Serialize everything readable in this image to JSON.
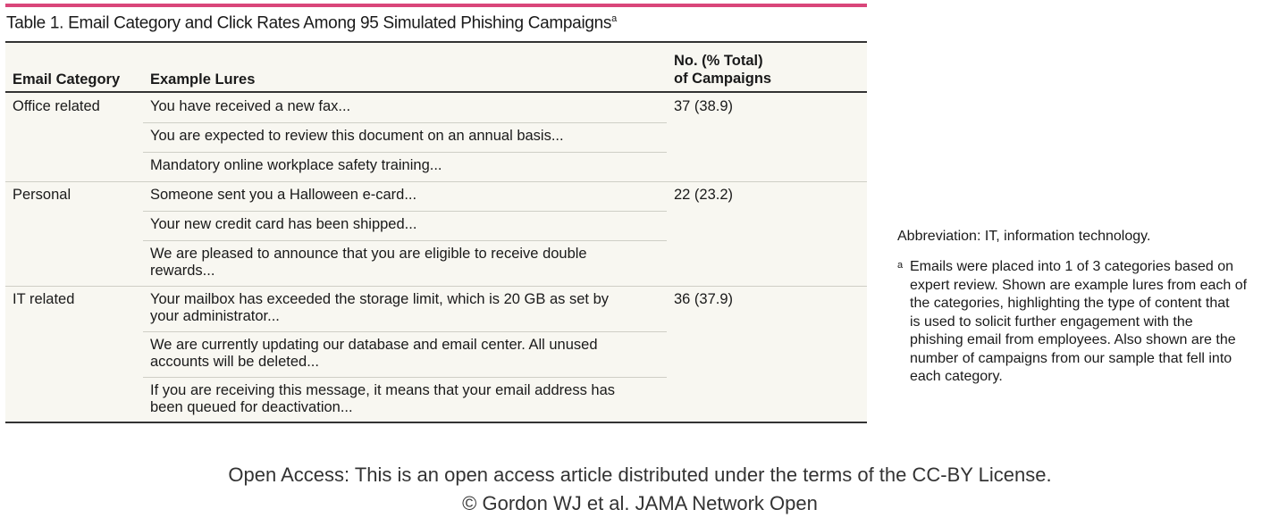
{
  "table": {
    "accent_color": "#d9467a",
    "title": "Table 1. Email Category and Click Rates Among 95 Simulated Phishing Campaigns",
    "title_footnote_mark": "a",
    "headers": {
      "category": "Email Category",
      "lures": "Example Lures",
      "count_line1": "No. (% Total)",
      "count_line2": "of Campaigns"
    },
    "rows": [
      {
        "category": "Office related",
        "count": "37 (38.9)",
        "lures": [
          [
            "You have received a new fax..."
          ],
          [
            "You are expected to review this document on an annual basis..."
          ],
          [
            "Mandatory online workplace safety training..."
          ]
        ]
      },
      {
        "category": "Personal",
        "count": "22 (23.2)",
        "lures": [
          [
            "Someone sent you a Halloween e-card..."
          ],
          [
            "Your new credit card has been shipped..."
          ],
          [
            "We are pleased to announce that you are eligible to receive double",
            "rewards..."
          ]
        ]
      },
      {
        "category": "IT related",
        "count": "36 (37.9)",
        "lures": [
          [
            "Your mailbox has exceeded the storage limit, which is 20 GB as set by",
            "your administrator..."
          ],
          [
            "We are currently updating our database and email center. All unused",
            "accounts will be deleted..."
          ],
          [
            "If you are receiving this message, it means that your email address has",
            "been queued for deactivation..."
          ]
        ]
      }
    ]
  },
  "notes": {
    "abbreviation": "Abbreviation: IT, information technology.",
    "footnote_mark": "a",
    "footnote_lines": [
      "Emails were placed into 1 of 3 categories based on",
      "expert review. Shown are example lures from each of",
      "the categories, highlighting the type of content that",
      "is used to solicit further engagement with the",
      "phishing email from employees. Also shown are the",
      "number of campaigns from our sample that fell into",
      "each category."
    ]
  },
  "footer": {
    "line1": "Open Access: This is an open access article distributed under the terms of the CC-BY License.",
    "line2": "© Gordon WJ et al. JAMA Network Open"
  }
}
